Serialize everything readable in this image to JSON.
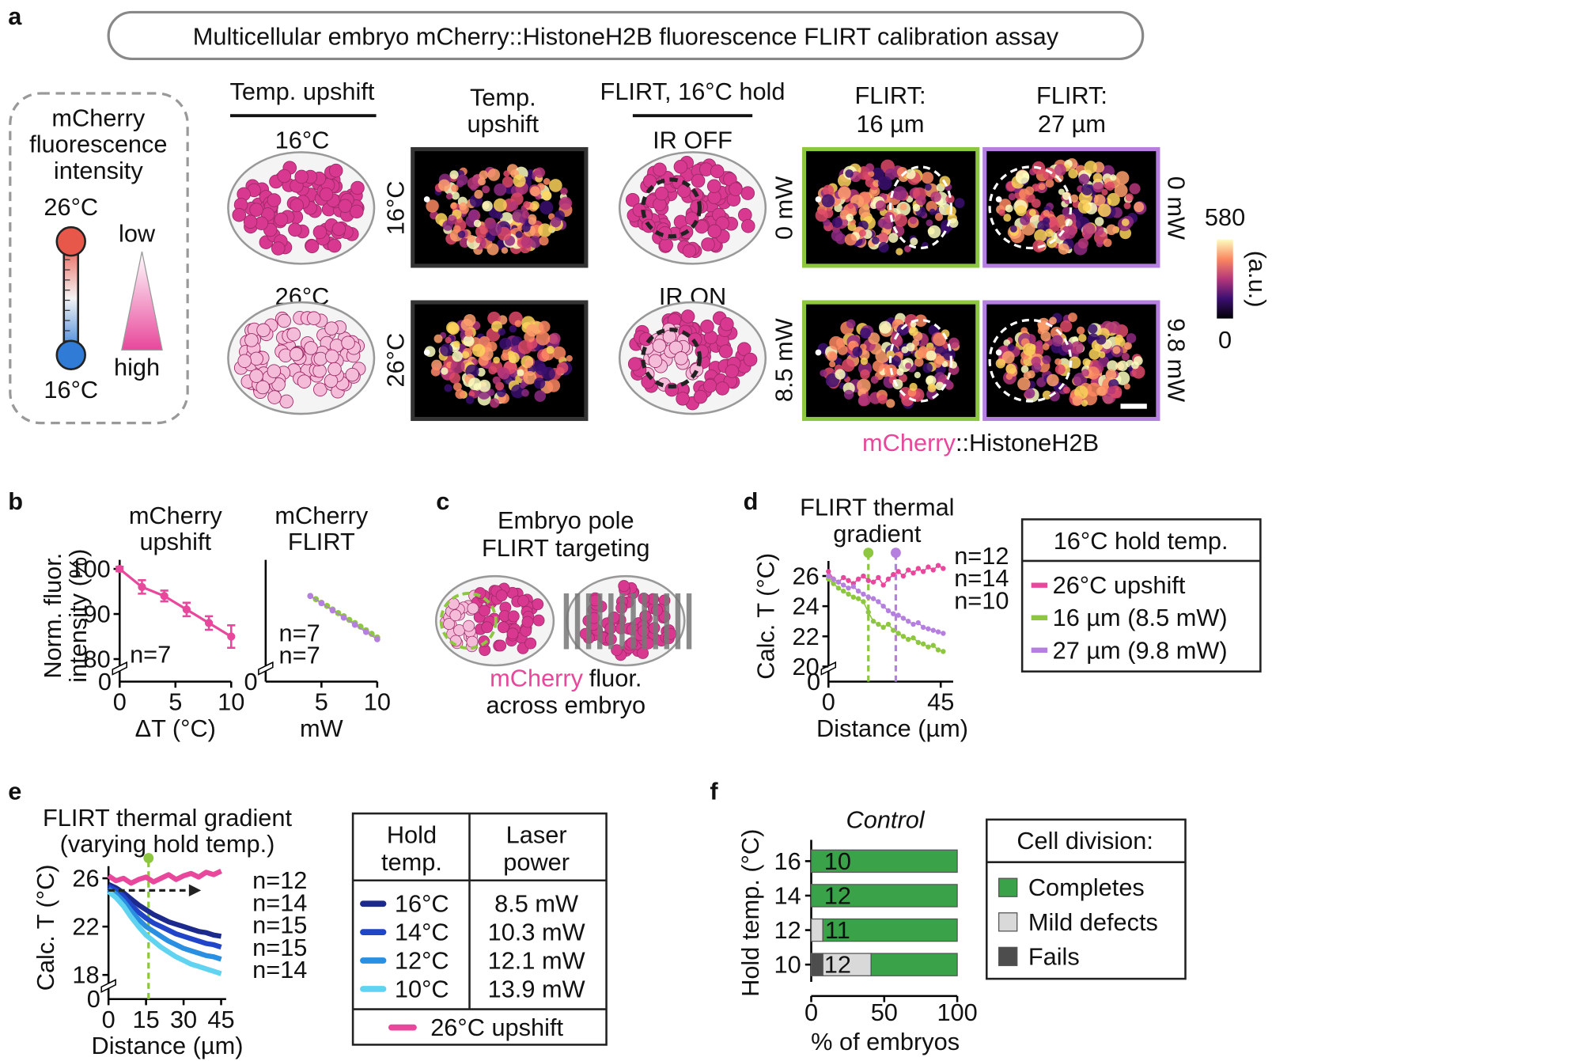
{
  "panel_labels": [
    "a",
    "b",
    "c",
    "d",
    "e",
    "f"
  ],
  "panel_a": {
    "title": "Multicellular embryo mCherry::HistoneH2B fluorescence FLIRT calibration assay",
    "key": {
      "lines": [
        "mCherry",
        "fluorescence",
        "intensity"
      ],
      "hot": "26°C",
      "cold": "16°C",
      "low": "low",
      "high": "high"
    },
    "columns": {
      "upshift_header": "Temp. upshift",
      "cold": "16°C",
      "hot": "26°C",
      "image_header": [
        "Temp.",
        "upshift"
      ],
      "row_labels": [
        "16°C",
        "26°C"
      ],
      "flirt_header": "FLIRT, 16°C hold",
      "ir_off": "IR OFF",
      "ir_on": "IR ON",
      "flirt16_header": [
        "FLIRT:",
        "16 µm"
      ],
      "flirt16_power": [
        "0 mW",
        "8.5 mW"
      ],
      "flirt27_header": [
        "FLIRT:",
        "27 µm"
      ],
      "flirt27_power": [
        "0 mW",
        "9.8 mW"
      ]
    },
    "colorbar": {
      "max": 580,
      "min": 0,
      "unit": "(a.u.)"
    },
    "caption": [
      "mCherry",
      "::HistoneH2B"
    ]
  },
  "panel_c": {
    "title": [
      "Embryo pole",
      "FLIRT targeting"
    ],
    "caption": [
      "mCherry",
      "fluor.",
      "across embryo"
    ]
  },
  "chart_data": [
    {
      "type": "line",
      "title": [
        "mCherry",
        "upshift"
      ],
      "ylabel": [
        "Norm. fluor.",
        "intensity (%)"
      ],
      "xlabel": "ΔT (°C)",
      "xlim": [
        0,
        10
      ],
      "xticks": [
        0,
        5,
        10
      ],
      "ylim": [
        75,
        102
      ],
      "yticks": [
        80,
        90,
        100
      ],
      "y_break_label": "0",
      "series": [
        {
          "color": "#e8479b",
          "x": [
            0,
            2,
            4,
            6,
            8,
            10
          ],
          "values": [
            100,
            96,
            94,
            91,
            88,
            85
          ],
          "errors": [
            0.5,
            1.5,
            1.2,
            1.5,
            1.5,
            2.5
          ],
          "n_label": "n=7"
        }
      ]
    },
    {
      "type": "line",
      "title": [
        "mCherry",
        "FLIRT"
      ],
      "xlabel": "mW",
      "xlim": [
        0,
        10
      ],
      "xticks": [
        5,
        10
      ],
      "ylim": [
        75,
        102
      ],
      "y_break_label": "0",
      "series": [
        {
          "color": "#8dc63f",
          "x": [
            4,
            4.5,
            5,
            5.5,
            6,
            6.5,
            7,
            7.5,
            8,
            8.5,
            9,
            9.5,
            10
          ],
          "values": [
            94,
            93.3,
            92.5,
            91.8,
            91,
            90.2,
            89.5,
            88.7,
            88,
            87.2,
            86.4,
            85.6,
            84.8
          ],
          "n_label": "n=7"
        },
        {
          "color": "#b57fe0",
          "x": [
            4,
            5,
            6,
            7,
            8,
            9,
            10
          ],
          "values": [
            94,
            92.4,
            90.8,
            89.2,
            87.6,
            86,
            84.4
          ],
          "n_label": "n=7"
        }
      ]
    },
    {
      "type": "line",
      "title": [
        "FLIRT thermal",
        "gradient"
      ],
      "ylabel": [
        "Calc. T (°C)"
      ],
      "xlabel": "Distance (µm)",
      "xlim": [
        0,
        50
      ],
      "xticks": [
        0,
        45
      ],
      "ylim": [
        19,
        27
      ],
      "yticks": [
        20,
        22,
        24,
        26
      ],
      "y_break_label": "0",
      "markers": [
        {
          "x": 16,
          "color": "#8dc63f"
        },
        {
          "x": 27,
          "color": "#b57fe0"
        }
      ],
      "legend_title": "16°C hold temp.",
      "x": [
        0,
        2,
        4,
        6,
        8,
        10,
        12,
        14,
        16,
        18,
        20,
        22,
        24,
        26,
        28,
        30,
        32,
        34,
        36,
        38,
        40,
        42,
        44,
        46
      ],
      "series": [
        {
          "name": "26°C upshift",
          "color": "#e8479b",
          "n_label": "n=12",
          "values": [
            26.3,
            25.8,
            25.6,
            25.9,
            25.7,
            25.5,
            25.8,
            26.0,
            25.7,
            25.6,
            25.9,
            25.4,
            25.8,
            26.1,
            26.3,
            26.0,
            26.4,
            26.2,
            26.5,
            26.3,
            26.6,
            26.4,
            26.7,
            26.5
          ]
        },
        {
          "name": "16 µm (8.5 mW)",
          "color": "#8dc63f",
          "n_label": "n=14",
          "values": [
            25.8,
            25.5,
            25.2,
            25.0,
            24.8,
            24.6,
            24.5,
            24.3,
            23.6,
            23.0,
            22.8,
            22.6,
            22.8,
            22.4,
            22.2,
            22.0,
            21.8,
            21.9,
            21.6,
            21.5,
            21.3,
            21.4,
            21.1,
            21.0
          ]
        },
        {
          "name": "27 µm (9.8 mW)",
          "color": "#b57fe0",
          "n_label": "n=10",
          "values": [
            26.0,
            25.8,
            25.6,
            25.4,
            25.2,
            25.3,
            25.0,
            24.8,
            24.6,
            24.5,
            24.3,
            24.0,
            23.7,
            23.5,
            23.4,
            23.2,
            23.0,
            22.8,
            22.9,
            22.6,
            22.5,
            22.4,
            22.3,
            22.2
          ]
        }
      ]
    },
    {
      "type": "line",
      "title": [
        "FLIRT thermal gradient",
        "(varying hold temp.)"
      ],
      "ylabel": [
        "Calc. T (°C)"
      ],
      "xlabel": "Distance (µm)",
      "xlim": [
        0,
        47
      ],
      "xticks": [
        0,
        15,
        30,
        45
      ],
      "ylim": [
        16,
        27
      ],
      "yticks": [
        18,
        22,
        26
      ],
      "y_break_label": "0",
      "markers": [
        {
          "x": 16,
          "color": "#8dc63f"
        }
      ],
      "reference_arrow": {
        "y": 25,
        "x_end": 37
      },
      "legend_headers": [
        [
          "Hold",
          "temp."
        ],
        [
          "Laser",
          "power"
        ]
      ],
      "x": [
        0,
        3,
        6,
        9,
        12,
        15,
        18,
        21,
        24,
        27,
        30,
        33,
        36,
        39,
        42,
        45
      ],
      "series": [
        {
          "name": "26°C upshift",
          "color": "#e8479b",
          "n_label": "n=12",
          "values": [
            26.2,
            25.8,
            26.0,
            25.6,
            25.9,
            26.1,
            25.7,
            26.0,
            26.3,
            25.9,
            26.2,
            26.4,
            26.1,
            26.5,
            26.3,
            26.6
          ]
        },
        {
          "name": "16°C",
          "laser_power": "8.5 mW",
          "color": "#1b2a8c",
          "n_label": "n=14",
          "values": [
            25.5,
            25.2,
            24.8,
            24.3,
            23.8,
            23.4,
            23.0,
            22.7,
            22.4,
            22.2,
            22.0,
            21.8,
            21.6,
            21.5,
            21.3,
            21.2
          ]
        },
        {
          "name": "14°C",
          "laser_power": "10.3 mW",
          "color": "#2145c9",
          "n_label": "n=15",
          "values": [
            25.3,
            25.0,
            24.5,
            23.8,
            23.2,
            22.7,
            22.3,
            22.0,
            21.7,
            21.4,
            21.2,
            21.0,
            20.8,
            20.6,
            20.5,
            20.3
          ]
        },
        {
          "name": "12°C",
          "laser_power": "12.1 mW",
          "color": "#2a8fe0",
          "n_label": "n=15",
          "values": [
            25.1,
            24.7,
            24.1,
            23.3,
            22.6,
            22.0,
            21.6,
            21.2,
            20.8,
            20.5,
            20.2,
            20.0,
            19.8,
            19.6,
            19.5,
            19.3
          ]
        },
        {
          "name": "10°C",
          "laser_power": "13.9 mW",
          "color": "#5fd3f0",
          "n_label": "n=14",
          "values": [
            24.9,
            24.4,
            23.7,
            22.8,
            22.0,
            21.3,
            20.8,
            20.3,
            19.9,
            19.5,
            19.2,
            18.9,
            18.7,
            18.5,
            18.3,
            18.1
          ]
        }
      ]
    },
    {
      "type": "stacked_barh",
      "title": "Control",
      "ylabel": "Hold temp. (°C)",
      "xlabel": "% of embryos",
      "categories": [
        "16",
        "14",
        "12",
        "10"
      ],
      "xlim": [
        0,
        100
      ],
      "xticks": [
        0,
        50,
        100
      ],
      "legend_title": "Cell division:",
      "n_labels": [
        10,
        12,
        11,
        12
      ],
      "series": [
        {
          "name": "Completes",
          "color": "#3aa34a",
          "values": [
            100,
            100,
            92,
            59
          ]
        },
        {
          "name": "Mild defects",
          "color": "#d9d9d9",
          "values": [
            0,
            0,
            8,
            33
          ]
        },
        {
          "name": "Fails",
          "color": "#4d4d4d",
          "values": [
            0,
            0,
            0,
            8
          ]
        }
      ]
    }
  ]
}
